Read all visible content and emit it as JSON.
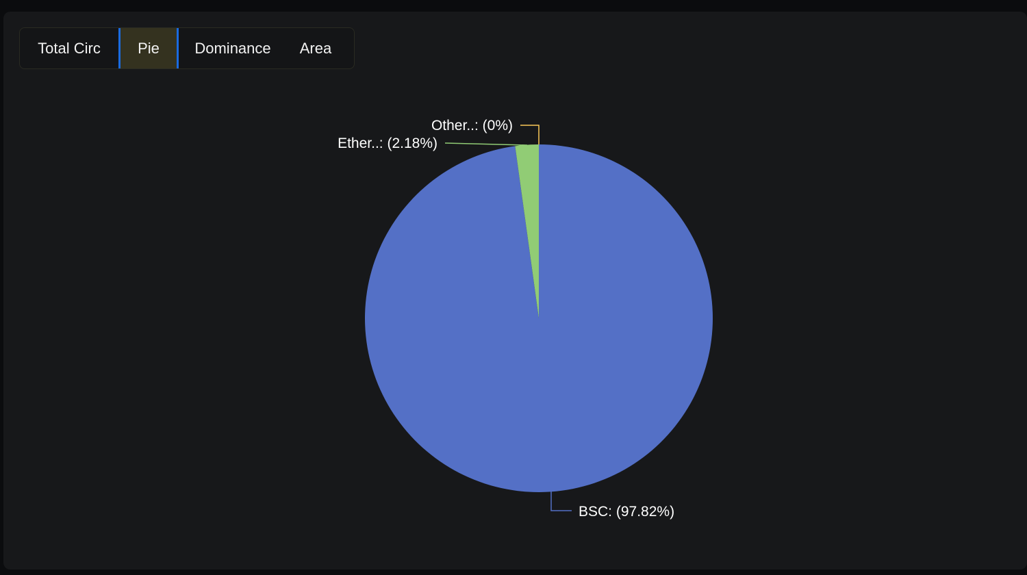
{
  "tabs": [
    {
      "label": "Total Circ",
      "active": false
    },
    {
      "label": "Pie",
      "active": true
    },
    {
      "label": "Dominance",
      "active": false
    },
    {
      "label": "Area",
      "active": false
    }
  ],
  "chart_data": {
    "type": "pie",
    "slices": [
      {
        "name": "BSC",
        "value": 97.82,
        "label": "BSC: (97.82%)",
        "color": "#5470c6"
      },
      {
        "name": "Ether..",
        "value": 2.18,
        "label": "Ether..: (2.18%)",
        "color": "#91cc75"
      },
      {
        "name": "Other..",
        "value": 0,
        "label": "Other..: (0%)",
        "color": "#fac858"
      }
    ],
    "start": "top",
    "direction": "clockwise"
  }
}
